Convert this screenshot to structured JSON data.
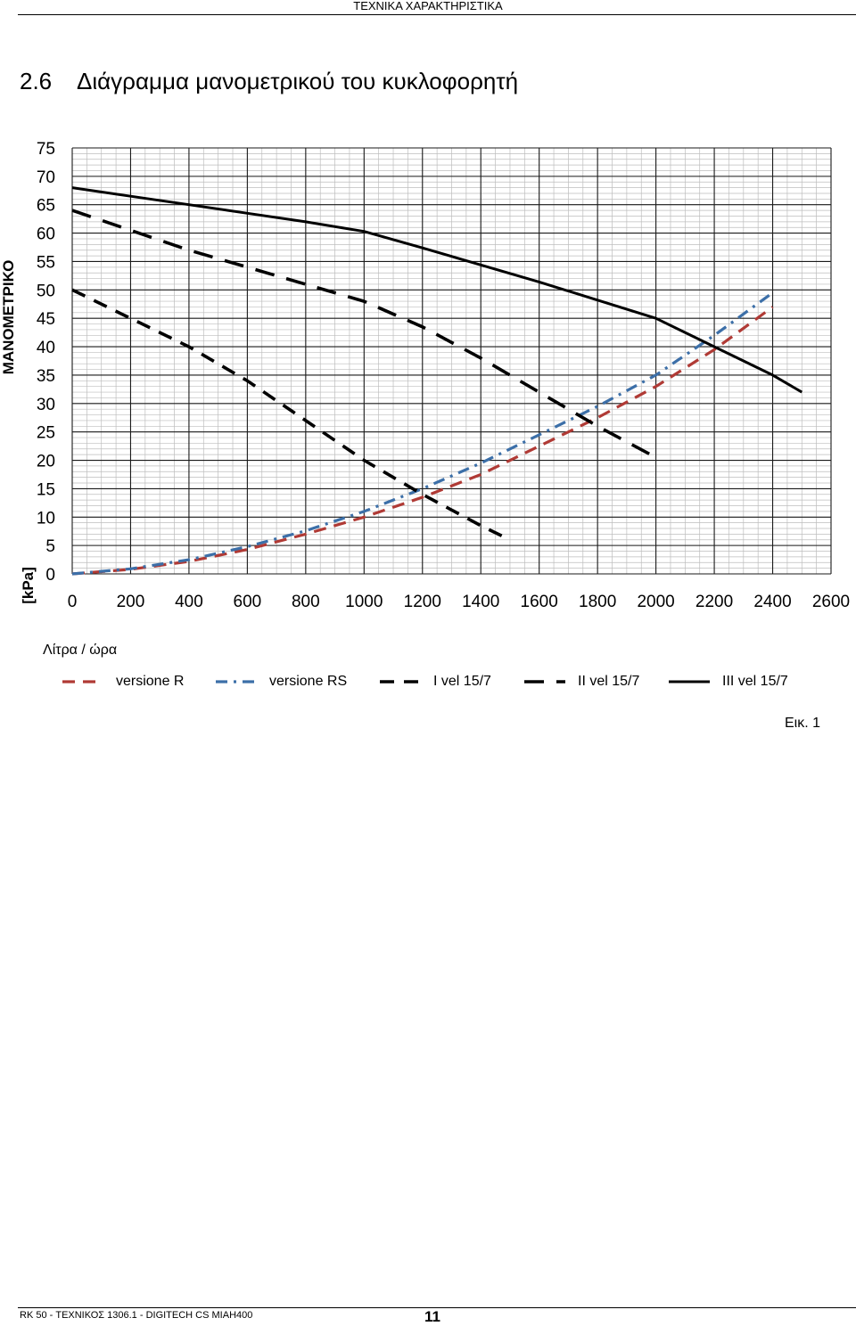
{
  "header": {
    "title": "ΤΕΧΝΙΚΑ ΧΑΡΑΚΤΗΡΙΣΤΙΚΑ"
  },
  "section": {
    "number": "2.6",
    "title": "Διάγραμμα μανομετρικού του κυκλοφορητή"
  },
  "chart_data": {
    "type": "line",
    "ylabel": "ΜΑΝΟΜΕΤΡΙΚΟ",
    "yunit": "[kPa]",
    "xlabel": "Λίτρα / ώρα",
    "xlim": [
      0,
      2600
    ],
    "ylim": [
      0,
      75
    ],
    "xticks": [
      0,
      200,
      400,
      600,
      800,
      1000,
      1200,
      1400,
      1600,
      1800,
      2000,
      2200,
      2400,
      2600
    ],
    "yticks": [
      0,
      5,
      10,
      15,
      20,
      25,
      30,
      35,
      40,
      45,
      50,
      55,
      60,
      65,
      70,
      75
    ],
    "grid": true,
    "legend_position": "bottom",
    "series": [
      {
        "name": "versione R",
        "color": "#b03a35",
        "dash": "dashed",
        "x": [
          0,
          200,
          400,
          600,
          800,
          1000,
          1200,
          1400,
          1600,
          1800,
          2000,
          2200,
          2400
        ],
        "y": [
          0,
          0.8,
          2.2,
          4.3,
          7,
          10,
          13.5,
          17.5,
          22.5,
          27.5,
          33,
          39.5,
          47
        ]
      },
      {
        "name": "versione RS",
        "color": "#3c6fa8",
        "dash": "dash-dot",
        "x": [
          0,
          200,
          400,
          600,
          800,
          1000,
          1200,
          1400,
          1600,
          1800,
          2000,
          2200,
          2400
        ],
        "y": [
          0,
          0.9,
          2.5,
          4.8,
          7.6,
          11,
          15,
          19.5,
          24.5,
          29.5,
          35,
          42,
          49.5
        ]
      },
      {
        "name": "I vel 15/7",
        "color": "#000000",
        "dash": "long-dash",
        "x": [
          0,
          200,
          400,
          600,
          800,
          1000,
          1200,
          1400,
          1480
        ],
        "y": [
          50,
          45,
          40,
          34,
          27,
          20,
          14,
          8.5,
          6.5
        ]
      },
      {
        "name": "II vel 15/7",
        "color": "#000000",
        "dash": "long-dash-wide",
        "x": [
          0,
          200,
          400,
          600,
          800,
          1000,
          1200,
          1400,
          1600,
          1800,
          2000
        ],
        "y": [
          64,
          60.5,
          57,
          54,
          51,
          48,
          43.5,
          38,
          32,
          26,
          20.5
        ]
      },
      {
        "name": "III vel 15/7",
        "color": "#000000",
        "dash": "solid",
        "x": [
          0,
          200,
          400,
          600,
          800,
          1000,
          1200,
          1400,
          1600,
          1800,
          2000,
          2200,
          2400,
          2500
        ],
        "y": [
          68,
          66.5,
          65,
          63.5,
          62,
          60.3,
          57.4,
          54.4,
          51.4,
          48.2,
          45,
          40,
          35,
          32
        ]
      }
    ]
  },
  "figure": {
    "label": "Εικ. 1"
  },
  "footer": {
    "text": "RK 50 - ΤΕΧΝΙΚΟΣ   1306.1 - DIGITECH CS MIAH400",
    "page": "11"
  }
}
